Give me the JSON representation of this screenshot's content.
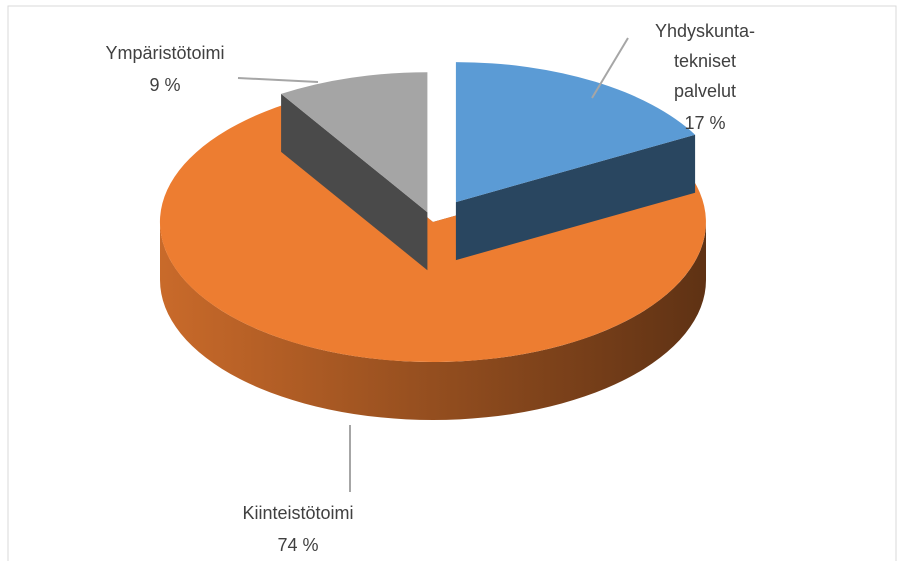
{
  "chart_data": {
    "type": "pie",
    "categories": [
      "Yhdyskunta-tekniset palvelut",
      "Kiinteistötoimi",
      "Ympäristötoimi"
    ],
    "values": [
      17,
      74,
      9
    ],
    "value_labels": [
      "17 %",
      "74 %",
      "9 %"
    ],
    "colors": [
      "#5b9bd5",
      "#ed7d31",
      "#a5a5a5"
    ]
  }
}
